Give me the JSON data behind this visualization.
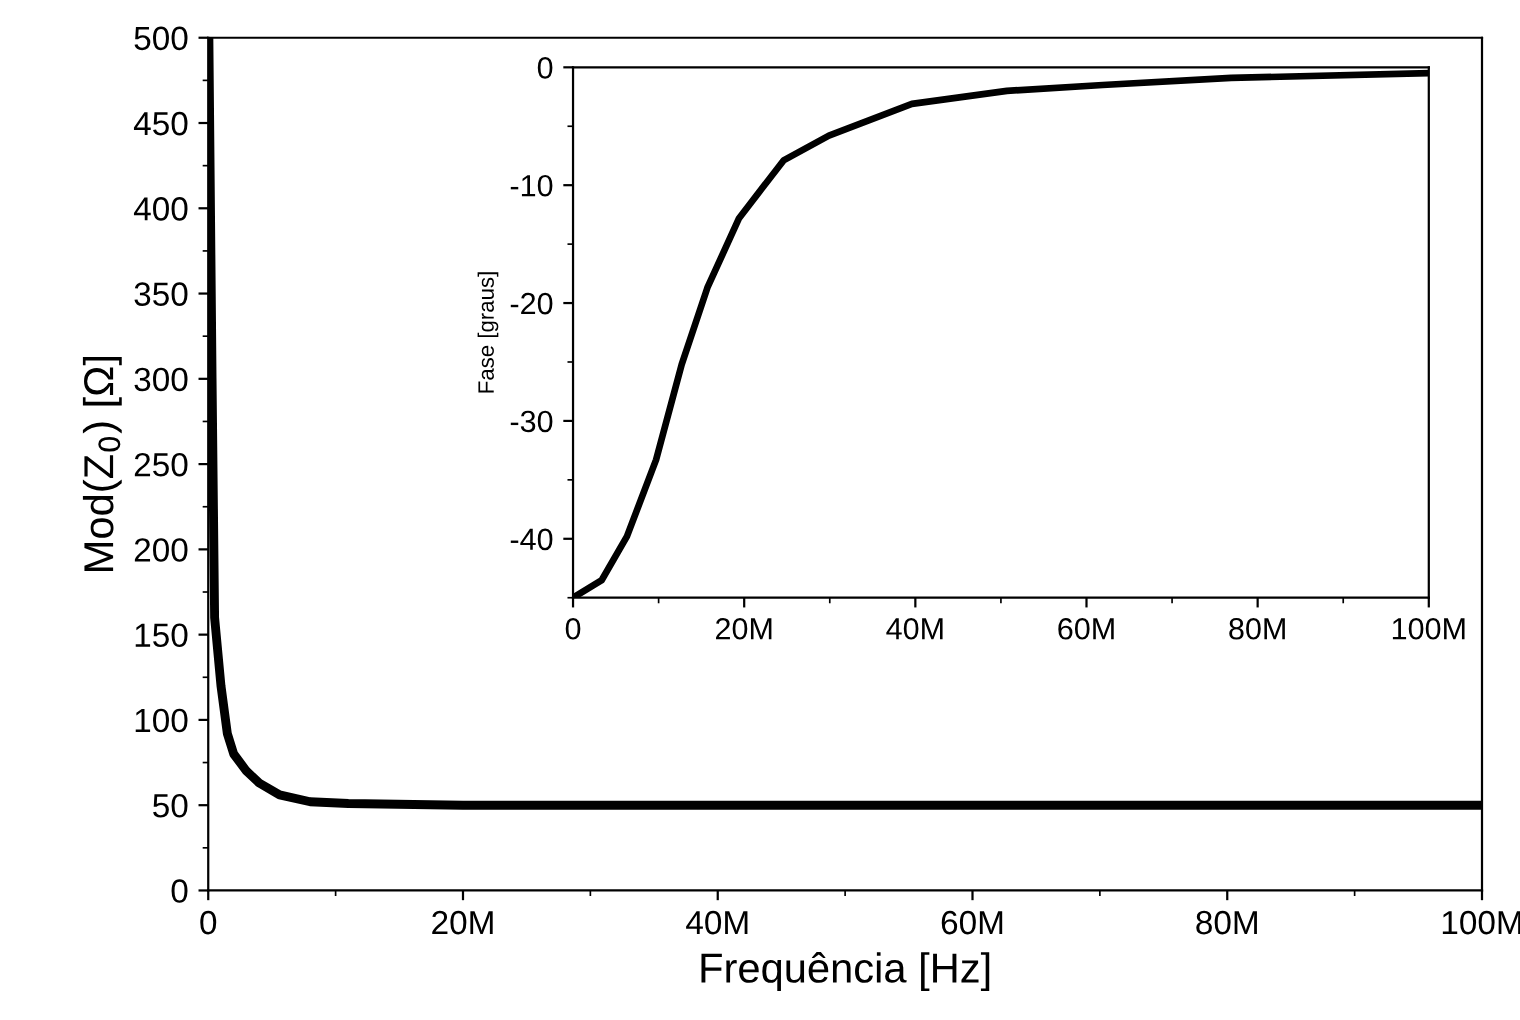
{
  "chart_data": [
    {
      "type": "line",
      "xlabel": "Frequência [Hz]",
      "ylabel": "Mod(Z$_{0}$) [Ω]",
      "x": [
        50000,
        300000,
        500000,
        1000000,
        1500000,
        2000000,
        3000000,
        4000000,
        5600000,
        8000000,
        11000000,
        20000000,
        40000000,
        60000000,
        80000000,
        100000000
      ],
      "series": [
        {
          "color": "#000000",
          "values": [
            500,
            300,
            160,
            120,
            92,
            80,
            70,
            63,
            56,
            52,
            51,
            50,
            50,
            50,
            50,
            50
          ]
        }
      ],
      "xlim": [
        0,
        100000000
      ],
      "ylim": [
        0,
        500
      ],
      "xticks": [
        0,
        {
          "value": 20000000,
          "label": "20M"
        },
        {
          "value": 40000000,
          "label": "40M"
        },
        {
          "value": 60000000,
          "label": "60M"
        },
        {
          "value": 80000000,
          "label": "80M"
        },
        {
          "value": 100000000,
          "label": "100M"
        }
      ],
      "yticks": [
        0,
        50,
        100,
        150,
        200,
        250,
        300,
        350,
        400,
        450,
        500
      ],
      "grid": false,
      "marker": "none",
      "line_style": "solid"
    },
    {
      "type": "line",
      "ylabel": "Fase [graus]",
      "x": [
        0,
        3360000,
        6300000,
        9700000,
        12700000,
        15700000,
        19400000,
        24600000,
        29900000,
        39600000,
        50700000,
        61900000,
        76900000,
        100000000
      ],
      "series": [
        {
          "color": "#000000",
          "values": [
            -45,
            -43.5,
            -39.8,
            -33.3,
            -25.2,
            -18.7,
            -12.8,
            -7.9,
            -5.8,
            -3.1,
            -2.0,
            -1.5,
            -0.9,
            -0.5
          ]
        }
      ],
      "xlim": [
        0,
        100000000
      ],
      "ylim": [
        -45,
        0
      ],
      "xticks": [
        0,
        {
          "value": 20000000,
          "label": "20M"
        },
        {
          "value": 40000000,
          "label": "40M"
        },
        {
          "value": 60000000,
          "label": "60M"
        },
        {
          "value": 80000000,
          "label": "80M"
        },
        {
          "value": 100000000,
          "label": "100M"
        }
      ],
      "yticks": [
        0,
        -10,
        -20,
        -30,
        -40
      ],
      "grid": false,
      "marker": "none",
      "line_style": "solid"
    }
  ]
}
